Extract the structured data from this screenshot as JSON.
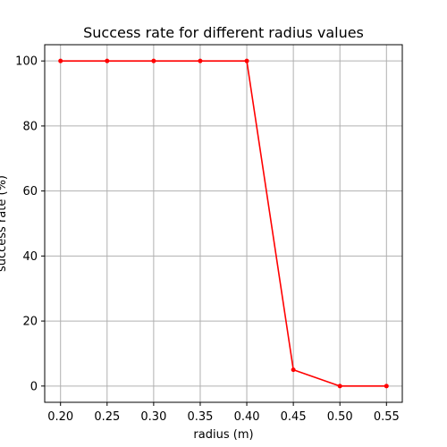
{
  "chart_data": {
    "type": "line",
    "title": "Success rate for different radius values",
    "xlabel": "radius (m)",
    "ylabel": "success rate (%)",
    "x": [
      0.2,
      0.25,
      0.3,
      0.35,
      0.4,
      0.45,
      0.5,
      0.55
    ],
    "series": [
      {
        "values": [
          100,
          100,
          100,
          100,
          100,
          5,
          0,
          0
        ],
        "color": "#ff0000",
        "marker": "point"
      }
    ],
    "xlim": [
      0.183,
      0.567
    ],
    "ylim": [
      -5,
      105
    ],
    "x_ticks": [
      "0.20",
      "0.25",
      "0.30",
      "0.35",
      "0.40",
      "0.45",
      "0.50",
      "0.55"
    ],
    "y_ticks": [
      "0",
      "20",
      "40",
      "60",
      "80",
      "100"
    ],
    "grid": true,
    "grid_color": "#b0b0b0",
    "legend": "none"
  }
}
